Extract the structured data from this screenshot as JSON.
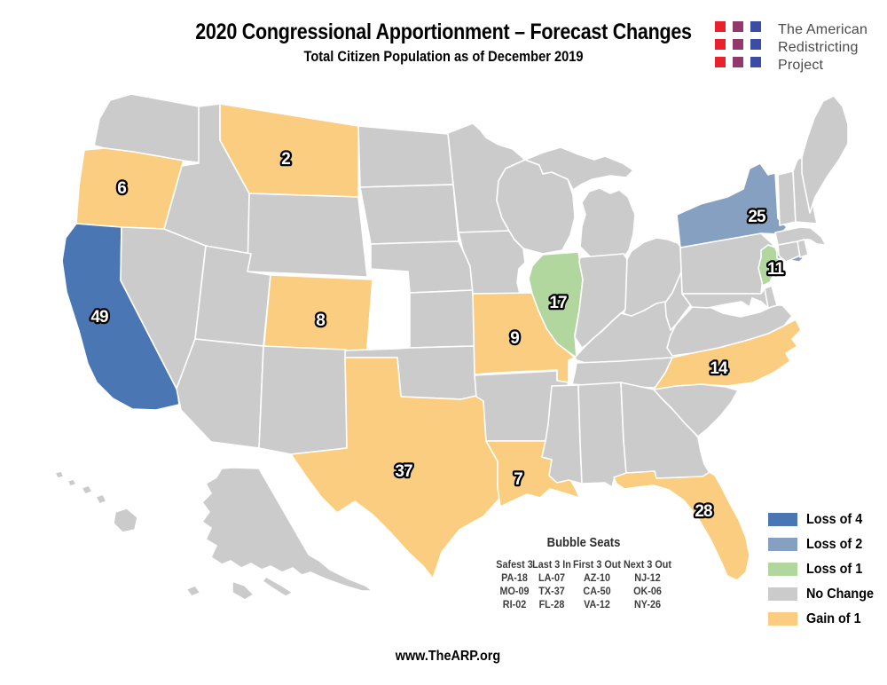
{
  "header": {
    "title": "2020 Congressional Apportionment – Forecast Changes",
    "subtitle": "Total Citizen Population as of December 2019"
  },
  "logo": {
    "lines": [
      "The American",
      "Redistricting",
      "Project"
    ],
    "square_colors": [
      "#E8212D",
      "#93386B",
      "#3C4CA5"
    ]
  },
  "colors": {
    "loss4": "#4A76B4",
    "loss2": "#85A0C1",
    "loss1": "#B1D69E",
    "no_change": "#CBCBCB",
    "gain1": "#FACD80",
    "border": "#FFFFFF"
  },
  "legend": {
    "items": [
      {
        "label": "Loss of 4",
        "key": "loss4"
      },
      {
        "label": "Loss of 2",
        "key": "loss2"
      },
      {
        "label": "Loss of 1",
        "key": "loss1"
      },
      {
        "label": "No Change",
        "key": "no_change"
      },
      {
        "label": "Gain of 1",
        "key": "gain1"
      }
    ]
  },
  "map": {
    "default_category": "no_change",
    "labeled_states": [
      {
        "code": "CA",
        "name": "California",
        "seats": "49",
        "change": -4,
        "category": "loss4"
      },
      {
        "code": "NY",
        "name": "New York",
        "seats": "25",
        "change": -2,
        "category": "loss2"
      },
      {
        "code": "IL",
        "name": "Illinois",
        "seats": "17",
        "change": -1,
        "category": "loss1"
      },
      {
        "code": "NJ",
        "name": "New Jersey",
        "seats": "11",
        "change": -1,
        "category": "loss1"
      },
      {
        "code": "OR",
        "name": "Oregon",
        "seats": "6",
        "change": 1,
        "category": "gain1"
      },
      {
        "code": "MT",
        "name": "Montana",
        "seats": "2",
        "change": 1,
        "category": "gain1"
      },
      {
        "code": "CO",
        "name": "Colorado",
        "seats": "8",
        "change": 1,
        "category": "gain1"
      },
      {
        "code": "MO",
        "name": "Missouri",
        "seats": "9",
        "change": 1,
        "category": "gain1"
      },
      {
        "code": "TX",
        "name": "Texas",
        "seats": "37",
        "change": 1,
        "category": "gain1"
      },
      {
        "code": "LA",
        "name": "Louisiana",
        "seats": "7",
        "change": 1,
        "category": "gain1"
      },
      {
        "code": "NC",
        "name": "North Carolina",
        "seats": "14",
        "change": 1,
        "category": "gain1"
      },
      {
        "code": "FL",
        "name": "Florida",
        "seats": "28",
        "change": 1,
        "category": "gain1"
      }
    ]
  },
  "bubble_seats": {
    "title": "Bubble Seats",
    "columns": [
      {
        "header": "Safest 3",
        "items": [
          "PA-18",
          "MO-09",
          "RI-02"
        ]
      },
      {
        "header": "Last 3 In",
        "items": [
          "LA-07",
          "TX-37",
          "FL-28"
        ]
      },
      {
        "header": "First 3 Out",
        "items": [
          "AZ-10",
          "CA-50",
          "VA-12"
        ]
      },
      {
        "header": "Next 3 Out",
        "items": [
          "NJ-12",
          "OK-06",
          "NY-26"
        ]
      }
    ]
  },
  "footer": {
    "url": "www.TheARP.org"
  },
  "chart_data": {
    "type": "choropleth_map",
    "title": "2020 Congressional Apportionment – Forecast Changes",
    "subtitle": "Total Citizen Population as of December 2019",
    "legend_position": "bottom-right",
    "categories": [
      "Loss of 4",
      "Loss of 2",
      "Loss of 1",
      "No Change",
      "Gain of 1"
    ],
    "values": [
      {
        "state": "California",
        "forecast_seats": 49,
        "change": -4
      },
      {
        "state": "New York",
        "forecast_seats": 25,
        "change": -2
      },
      {
        "state": "Illinois",
        "forecast_seats": 17,
        "change": -1
      },
      {
        "state": "New Jersey",
        "forecast_seats": 11,
        "change": -1
      },
      {
        "state": "Oregon",
        "forecast_seats": 6,
        "change": 1
      },
      {
        "state": "Montana",
        "forecast_seats": 2,
        "change": 1
      },
      {
        "state": "Colorado",
        "forecast_seats": 8,
        "change": 1
      },
      {
        "state": "Missouri",
        "forecast_seats": 9,
        "change": 1
      },
      {
        "state": "Texas",
        "forecast_seats": 37,
        "change": 1
      },
      {
        "state": "Louisiana",
        "forecast_seats": 7,
        "change": 1
      },
      {
        "state": "North Carolina",
        "forecast_seats": 14,
        "change": 1
      },
      {
        "state": "Florida",
        "forecast_seats": 28,
        "change": 1
      }
    ],
    "note": "All other states: No Change"
  }
}
